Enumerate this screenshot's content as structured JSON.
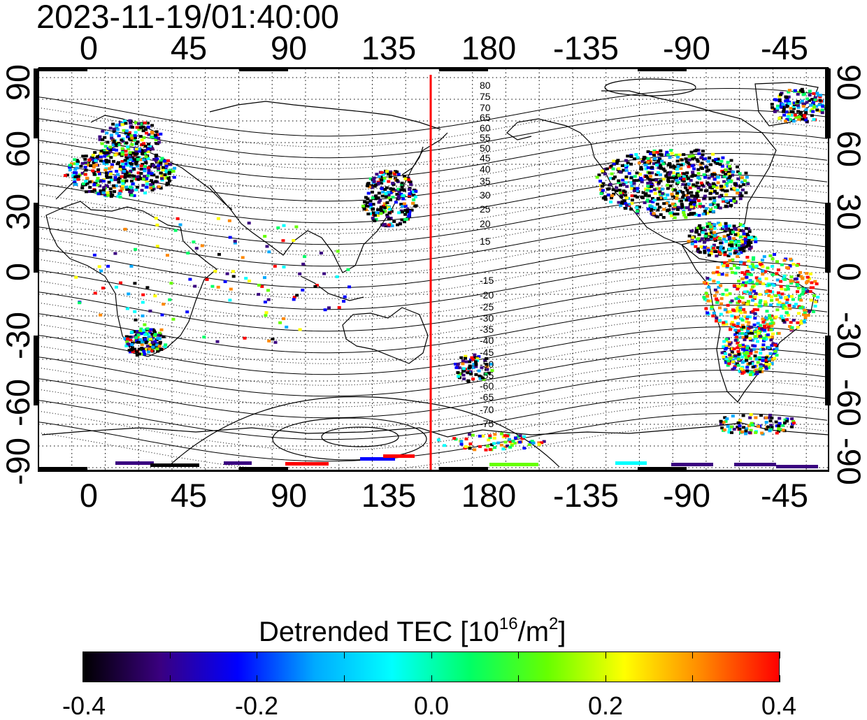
{
  "timestamp": "2023-11-19/01:40:00",
  "map": {
    "lon_ticks": [
      "0",
      "45",
      "90",
      "135",
      "180",
      "-135",
      "-90",
      "-45"
    ],
    "lat_ticks": [
      "90",
      "60",
      "30",
      "0",
      "-30",
      "-60",
      "-90"
    ],
    "contour_labels": [
      "80",
      "75",
      "70",
      "65",
      "60",
      "55",
      "50",
      "45",
      "40",
      "35",
      "30",
      "25",
      "20",
      "15",
      "-15",
      "-20",
      "-25",
      "-30",
      "-35",
      "-40",
      "-45",
      "-50",
      "-55",
      "-60",
      "-65",
      "-70",
      "-75"
    ],
    "terminator_longitude": 155,
    "terminator_color": "#ff0000"
  },
  "colorbar": {
    "title_main": "Detrended TEC  [10",
    "title_exp": "16",
    "title_unit": "/m",
    "title_unit_exp": "2",
    "title_close": "]",
    "ticks": [
      "-0.4",
      "-0.2",
      "0.0",
      "0.2",
      "0.4"
    ],
    "range": [
      -0.4,
      0.4
    ],
    "colors": [
      "#000000",
      "#3a0080",
      "#0000ff",
      "#00aaff",
      "#00ffff",
      "#00ff66",
      "#66ff00",
      "#ffff00",
      "#ff8800",
      "#ff0000"
    ]
  }
}
